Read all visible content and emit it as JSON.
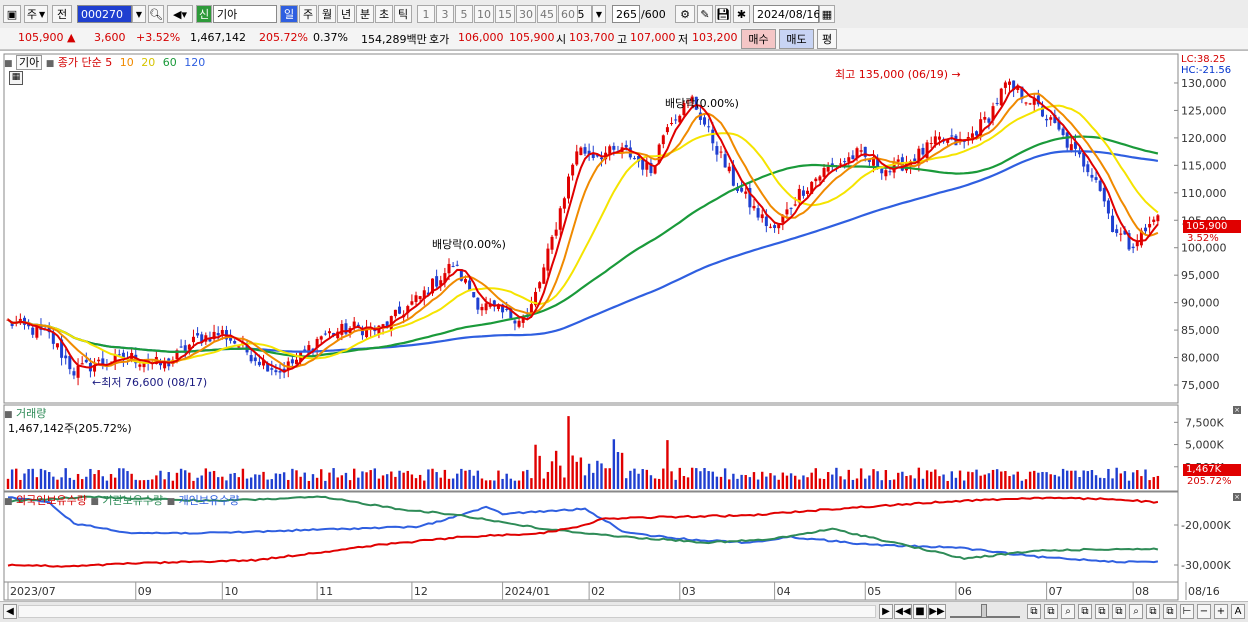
{
  "toolbar": {
    "market_btn": "주",
    "prev_btn": "전",
    "code_value": "000270",
    "sign_btn": "신",
    "name_value": "기아",
    "periods": [
      "일",
      "주",
      "월",
      "년",
      "분",
      "초",
      "틱"
    ],
    "intervals": [
      "1",
      "3",
      "5",
      "10",
      "15",
      "30",
      "45",
      "60"
    ],
    "interval_value": "5",
    "count_value": "265",
    "count_total": "/600",
    "date_value": "2024/08/16"
  },
  "quote": {
    "price": "105,900",
    "arrow": "▲",
    "change": "3,600",
    "change_pct": "+3.52%",
    "volume": "1,467,142",
    "vol_ratio": "205.72%",
    "turnover": "0.37%",
    "amount": "154,289백만",
    "ask_label": "호가",
    "ask1": "106,000",
    "ask2": "105,900",
    "open_label": "시",
    "open": "103,700",
    "high_label": "고",
    "high": "107,000",
    "low_label": "저",
    "low": "103,200",
    "buy_btn": "매수",
    "sell_btn": "매도",
    "eval_btn": "평"
  },
  "colors": {
    "up": "#e00000",
    "down": "#1f3fd0",
    "ma5": "#e00000",
    "ma10": "#f08a00",
    "ma20": "#f5e400",
    "ma60": "#1a9a3a",
    "ma120": "#2f5fe0",
    "foreign": "#2f5fe0",
    "institution": "#2e8b57",
    "individual": "#e00000"
  },
  "chart_data": [
    {
      "type": "candlestick",
      "legend": {
        "name": "기아",
        "label": "종가 단순",
        "periods": [
          "5",
          "10",
          "20",
          "60",
          "120"
        ]
      },
      "lc_label": "LC:38.25",
      "hc_label": "HC:-21.56",
      "y_ticks": [
        "130,000",
        "125,000",
        "120,000",
        "115,000",
        "110,000",
        "105,000",
        "100,000",
        "95,000",
        "90,000",
        "85,000",
        "80,000",
        "75,000"
      ],
      "ylim": [
        73000,
        134000
      ],
      "annotations": {
        "high": "최고 135,000 (06/19)",
        "low": "최저 76,600 (08/17)",
        "dividend1": "배당락(0.00%)",
        "dividend2": "배당락(0.00%)"
      },
      "last_price_tag": "105,900",
      "last_pct_tag": "3.52%",
      "x_ticks": [
        "2023/07",
        "09",
        "10",
        "11",
        "12",
        "2024/01",
        "02",
        "03",
        "04",
        "05",
        "06",
        "07",
        "08",
        "08/16"
      ],
      "close_path": [
        [
          0,
          86500
        ],
        [
          10,
          84000
        ],
        [
          16,
          77500
        ],
        [
          22,
          79000
        ],
        [
          30,
          80000
        ],
        [
          38,
          78500
        ],
        [
          46,
          83500
        ],
        [
          52,
          84500
        ],
        [
          60,
          80000
        ],
        [
          66,
          77500
        ],
        [
          70,
          79500
        ],
        [
          76,
          84000
        ],
        [
          84,
          85500
        ],
        [
          90,
          85000
        ],
        [
          100,
          91000
        ],
        [
          108,
          97000
        ],
        [
          114,
          90000
        ],
        [
          120,
          88000
        ],
        [
          126,
          87000
        ],
        [
          130,
          96000
        ],
        [
          134,
          107000
        ],
        [
          138,
          118000
        ],
        [
          142,
          117000
        ],
        [
          150,
          117500
        ],
        [
          156,
          114000
        ],
        [
          160,
          123000
        ],
        [
          166,
          127000
        ],
        [
          170,
          121000
        ],
        [
          176,
          112000
        ],
        [
          182,
          106000
        ],
        [
          186,
          103000
        ],
        [
          192,
          110000
        ],
        [
          198,
          114000
        ],
        [
          206,
          117000
        ],
        [
          214,
          114000
        ],
        [
          220,
          116500
        ],
        [
          226,
          119500
        ],
        [
          232,
          119000
        ],
        [
          238,
          124000
        ],
        [
          242,
          129500
        ],
        [
          248,
          127000
        ],
        [
          254,
          122000
        ],
        [
          258,
          118000
        ],
        [
          264,
          113000
        ],
        [
          268,
          104000
        ],
        [
          272,
          100500
        ],
        [
          276,
          103000
        ],
        [
          279,
          105900
        ]
      ]
    },
    {
      "type": "bar",
      "title": "거래량",
      "subtitle": "1,467,142주(205.72%)",
      "y_ticks": [
        "7,500K",
        "5,000K",
        "2,500K"
      ],
      "last_tag": "1,467K",
      "last_pct_tag": "205.72%",
      "last_value": 1467142
    },
    {
      "type": "line",
      "series": [
        {
          "name": "외국인보유수량"
        },
        {
          "name": "기관보유수량"
        },
        {
          "name": "개인보유수량"
        }
      ],
      "y_ticks": [
        "-20,000K",
        "-30,000K"
      ]
    }
  ],
  "scrollbar": {
    "left_arrow": "◀",
    "right_arrow": "▶",
    "nav": [
      "◀◀",
      "■",
      "▶▶"
    ],
    "zoom_out": "−",
    "zoom_in": "+",
    "font_btn": "A"
  }
}
